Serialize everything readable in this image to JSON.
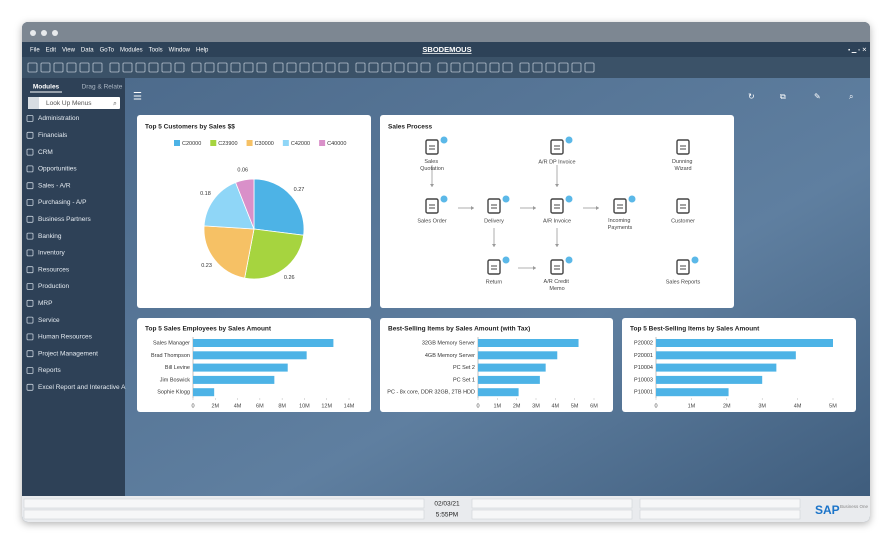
{
  "window": {
    "title": "SBODEMOUS",
    "menu": [
      "File",
      "Edit",
      "View",
      "Data",
      "GoTo",
      "Modules",
      "Tools",
      "Window",
      "Help"
    ]
  },
  "sidebar": {
    "tabs": [
      "Modules",
      "Drag & Relate"
    ],
    "search": "Look Up Menus",
    "items": [
      "Administration",
      "Financials",
      "CRM",
      "Opportunities",
      "Sales - A/R",
      "Purchasing - A/P",
      "Business Partners",
      "Banking",
      "Inventory",
      "Resources",
      "Production",
      "MRP",
      "Service",
      "Human Resources",
      "Project Management",
      "Reports",
      "Excel Report and Interactive A"
    ]
  },
  "process": {
    "title": "Sales Process",
    "nodes": [
      "Sales Quotation",
      "A/R DP Invoice",
      "Dunning Wizard",
      "Sales Order",
      "Delivery",
      "A/R Invoice",
      "Incoming Payments",
      "Customer",
      "Return",
      "A/R Credit Memo",
      "Sales Reports"
    ]
  },
  "status": {
    "date": "02/03/21",
    "time": "5:55PM"
  },
  "logo": {
    "brand": "SAP",
    "product": "Business One"
  },
  "chart_data": [
    {
      "type": "pie",
      "title": "Top 5 Customers by Sales $$",
      "categories": [
        "C20000",
        "C23900",
        "C30000",
        "C42000",
        "C40000"
      ],
      "values": [
        0.27,
        0.26,
        0.23,
        0.18,
        0.06
      ],
      "colors": [
        "#4db3e6",
        "#a6d43f",
        "#f6c165",
        "#8fd6f7",
        "#d990c9"
      ]
    },
    {
      "type": "hbar",
      "title": "Top 5 Sales Employees by Sales Amount",
      "categories": [
        "Sales Manager",
        "Brad Thompson",
        "Bill Levine",
        "Jim Boswick",
        "Sophie Klogg"
      ],
      "values": [
        12600000,
        10200000,
        8500000,
        7300000,
        1900000
      ],
      "color": "#4db3e6",
      "xlim": [
        0,
        14000000
      ],
      "xticks": [
        0,
        {
          "value": 2000000,
          "label": "2M"
        },
        {
          "value": 4000000,
          "label": "4M"
        },
        {
          "value": 6000000,
          "label": "6M"
        },
        {
          "value": 8000000,
          "label": "8M"
        },
        {
          "value": 10000000,
          "label": "10M"
        },
        {
          "value": 12000000,
          "label": "12M"
        },
        {
          "value": 14000000,
          "label": "14M"
        }
      ]
    },
    {
      "type": "hbar",
      "title": "Best-Selling Items by Sales Amount (with Tax)",
      "categories": [
        "32GB Memory Server",
        "4GB Memory Server",
        "PC Set 2",
        "PC Set 1",
        "PC - 8x core, DDR 32GB, 2TB HDD"
      ],
      "values": [
        5200000,
        4100000,
        3500000,
        3200000,
        2100000
      ],
      "color": "#4db3e6",
      "xlim": [
        0,
        6000000
      ],
      "xticks": [
        0,
        {
          "value": 1000000,
          "label": "1M"
        },
        {
          "value": 2000000,
          "label": "2M"
        },
        {
          "value": 3000000,
          "label": "3M"
        },
        {
          "value": 4000000,
          "label": "4M"
        },
        {
          "value": 5000000,
          "label": "5M"
        },
        {
          "value": 6000000,
          "label": "6M"
        }
      ]
    },
    {
      "type": "hbar",
      "title": "Top 5 Best-Selling Items by Sales Amount",
      "categories": [
        "P20002",
        "P20001",
        "P10004",
        "P10003",
        "P10001"
      ],
      "values": [
        5000000,
        3950000,
        3400000,
        3000000,
        2050000
      ],
      "color": "#4db3e6",
      "xlim": [
        0,
        5000000
      ],
      "xticks": [
        0,
        {
          "value": 1000000,
          "label": "1M"
        },
        {
          "value": 2000000,
          "label": "2M"
        },
        {
          "value": 3000000,
          "label": "3M"
        },
        {
          "value": 4000000,
          "label": "4M"
        },
        {
          "value": 5000000,
          "label": "5M"
        }
      ]
    }
  ]
}
